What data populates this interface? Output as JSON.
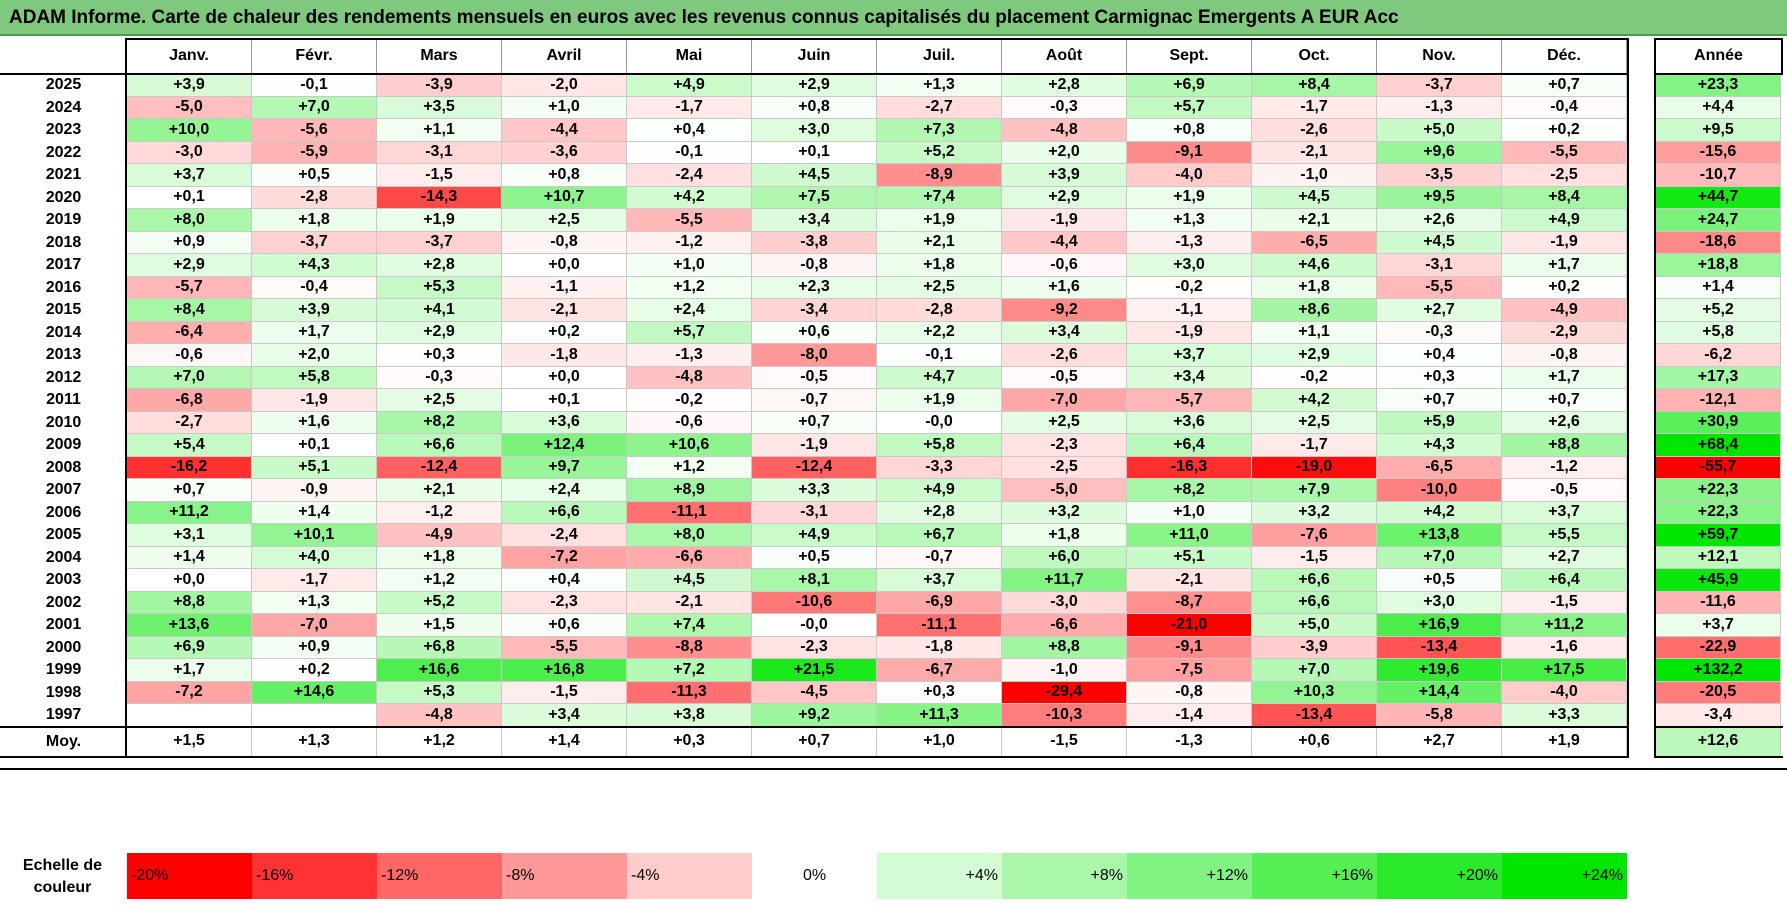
{
  "title": "ADAM Informe. Carte de chaleur des rendements mensuels en euros avec les revenus connus capitalisés du placement Carmignac Emergents A EUR Acc",
  "chart_data": {
    "type": "heatmap",
    "title": "ADAM Informe. Carte de chaleur des rendements mensuels en euros avec les revenus connus capitalisés du placement Carmignac Emergents A EUR Acc",
    "columns": [
      "Janv.",
      "Févr.",
      "Mars",
      "Avril",
      "Mai",
      "Juin",
      "Juil.",
      "Août",
      "Sept.",
      "Oct.",
      "Nov.",
      "Déc."
    ],
    "year_column": "Année",
    "rows": [
      {
        "year": "2025",
        "values": [
          "+3,9",
          "-0,1",
          "-3,9",
          "-2,0",
          "+4,9",
          "+2,9",
          "+1,3",
          "+2,8",
          "+6,9",
          "+8,4",
          "-3,7",
          "+0,7"
        ],
        "annual": "+23,3"
      },
      {
        "year": "2024",
        "values": [
          "-5,0",
          "+7,0",
          "+3,5",
          "+1,0",
          "-1,7",
          "+0,8",
          "-2,7",
          "-0,3",
          "+5,7",
          "-1,7",
          "-1,3",
          "-0,4"
        ],
        "annual": "+4,4"
      },
      {
        "year": "2023",
        "values": [
          "+10,0",
          "-5,6",
          "+1,1",
          "-4,4",
          "+0,4",
          "+3,0",
          "+7,3",
          "-4,8",
          "+0,8",
          "-2,6",
          "+5,0",
          "+0,2"
        ],
        "annual": "+9,5"
      },
      {
        "year": "2022",
        "values": [
          "-3,0",
          "-5,9",
          "-3,1",
          "-3,6",
          "-0,1",
          "+0,1",
          "+5,2",
          "+2,0",
          "-9,1",
          "-2,1",
          "+9,6",
          "-5,5"
        ],
        "annual": "-15,6"
      },
      {
        "year": "2021",
        "values": [
          "+3,7",
          "+0,5",
          "-1,5",
          "+0,8",
          "-2,4",
          "+4,5",
          "-8,9",
          "+3,9",
          "-4,0",
          "-1,0",
          "-3,5",
          "-2,5"
        ],
        "annual": "-10,7"
      },
      {
        "year": "2020",
        "values": [
          "+0,1",
          "-2,8",
          "-14,3",
          "+10,7",
          "+4,2",
          "+7,5",
          "+7,4",
          "+2,9",
          "+1,9",
          "+4,5",
          "+9,5",
          "+8,4"
        ],
        "annual": "+44,7"
      },
      {
        "year": "2019",
        "values": [
          "+8,0",
          "+1,8",
          "+1,9",
          "+2,5",
          "-5,5",
          "+3,4",
          "+1,9",
          "-1,9",
          "+1,3",
          "+2,1",
          "+2,6",
          "+4,9"
        ],
        "annual": "+24,7"
      },
      {
        "year": "2018",
        "values": [
          "+0,9",
          "-3,7",
          "-3,7",
          "-0,8",
          "-1,2",
          "-3,8",
          "+2,1",
          "-4,4",
          "-1,3",
          "-6,5",
          "+4,5",
          "-1,9"
        ],
        "annual": "-18,6"
      },
      {
        "year": "2017",
        "values": [
          "+2,9",
          "+4,3",
          "+2,8",
          "+0,0",
          "+1,0",
          "-0,8",
          "+1,8",
          "-0,6",
          "+3,0",
          "+4,6",
          "-3,1",
          "+1,7"
        ],
        "annual": "+18,8"
      },
      {
        "year": "2016",
        "values": [
          "-5,7",
          "-0,4",
          "+5,3",
          "-1,1",
          "+1,2",
          "+2,3",
          "+2,5",
          "+1,6",
          "-0,2",
          "+1,8",
          "-5,5",
          "+0,2"
        ],
        "annual": "+1,4"
      },
      {
        "year": "2015",
        "values": [
          "+8,4",
          "+3,9",
          "+4,1",
          "-2,1",
          "+2,4",
          "-3,4",
          "-2,8",
          "-9,2",
          "-1,1",
          "+8,6",
          "+2,7",
          "-4,9"
        ],
        "annual": "+5,2"
      },
      {
        "year": "2014",
        "values": [
          "-6,4",
          "+1,7",
          "+2,9",
          "+0,2",
          "+5,7",
          "+0,6",
          "+2,2",
          "+3,4",
          "-1,9",
          "+1,1",
          "-0,3",
          "-2,9"
        ],
        "annual": "+5,8"
      },
      {
        "year": "2013",
        "values": [
          "-0,6",
          "+2,0",
          "+0,3",
          "-1,8",
          "-1,3",
          "-8,0",
          "-0,1",
          "-2,6",
          "+3,7",
          "+2,9",
          "+0,4",
          "-0,8"
        ],
        "annual": "-6,2"
      },
      {
        "year": "2012",
        "values": [
          "+7,0",
          "+5,8",
          "-0,3",
          "+0,0",
          "-4,8",
          "-0,5",
          "+4,7",
          "-0,5",
          "+3,4",
          "-0,2",
          "+0,3",
          "+1,7"
        ],
        "annual": "+17,3"
      },
      {
        "year": "2011",
        "values": [
          "-6,8",
          "-1,9",
          "+2,5",
          "+0,1",
          "-0,2",
          "-0,7",
          "+1,9",
          "-7,0",
          "-5,7",
          "+4,2",
          "+0,7",
          "+0,7"
        ],
        "annual": "-12,1"
      },
      {
        "year": "2010",
        "values": [
          "-2,7",
          "+1,6",
          "+8,2",
          "+3,6",
          "-0,6",
          "+0,7",
          "-0,0",
          "+2,5",
          "+3,6",
          "+2,5",
          "+5,9",
          "+2,6"
        ],
        "annual": "+30,9"
      },
      {
        "year": "2009",
        "values": [
          "+5,4",
          "+0,1",
          "+6,6",
          "+12,4",
          "+10,6",
          "-1,9",
          "+5,8",
          "-2,3",
          "+6,4",
          "-1,7",
          "+4,3",
          "+8,8"
        ],
        "annual": "+68,4"
      },
      {
        "year": "2008",
        "values": [
          "-16,2",
          "+5,1",
          "-12,4",
          "+9,7",
          "+1,2",
          "-12,4",
          "-3,3",
          "-2,5",
          "-16,3",
          "-19,0",
          "-6,5",
          "-1,2"
        ],
        "annual": "-55,7"
      },
      {
        "year": "2007",
        "values": [
          "+0,7",
          "-0,9",
          "+2,1",
          "+2,4",
          "+8,9",
          "+3,3",
          "+4,9",
          "-5,0",
          "+8,2",
          "+7,9",
          "-10,0",
          "-0,5"
        ],
        "annual": "+22,3"
      },
      {
        "year": "2006",
        "values": [
          "+11,2",
          "+1,4",
          "-1,2",
          "+6,6",
          "-11,1",
          "-3,1",
          "+2,8",
          "+3,2",
          "+1,0",
          "+3,2",
          "+4,2",
          "+3,7"
        ],
        "annual": "+22,3"
      },
      {
        "year": "2005",
        "values": [
          "+3,1",
          "+10,1",
          "-4,9",
          "-2,4",
          "+8,0",
          "+4,9",
          "+6,7",
          "+1,8",
          "+11,0",
          "-7,6",
          "+13,8",
          "+5,5"
        ],
        "annual": "+59,7"
      },
      {
        "year": "2004",
        "values": [
          "+1,4",
          "+4,0",
          "+1,8",
          "-7,2",
          "-6,6",
          "+0,5",
          "-0,7",
          "+6,0",
          "+5,1",
          "-1,5",
          "+7,0",
          "+2,7"
        ],
        "annual": "+12,1"
      },
      {
        "year": "2003",
        "values": [
          "+0,0",
          "-1,7",
          "+1,2",
          "+0,4",
          "+4,5",
          "+8,1",
          "+3,7",
          "+11,7",
          "-2,1",
          "+6,6",
          "+0,5",
          "+6,4"
        ],
        "annual": "+45,9"
      },
      {
        "year": "2002",
        "values": [
          "+8,8",
          "+1,3",
          "+5,2",
          "-2,3",
          "-2,1",
          "-10,6",
          "-6,9",
          "-3,0",
          "-8,7",
          "+6,6",
          "+3,0",
          "-1,5"
        ],
        "annual": "-11,6"
      },
      {
        "year": "2001",
        "values": [
          "+13,6",
          "-7,0",
          "+1,5",
          "+0,6",
          "+7,4",
          "-0,0",
          "-11,1",
          "-6,6",
          "-21,0",
          "+5,0",
          "+16,9",
          "+11,2"
        ],
        "annual": "+3,7"
      },
      {
        "year": "2000",
        "values": [
          "+6,9",
          "+0,9",
          "+6,8",
          "-5,5",
          "-8,8",
          "-2,3",
          "-1,8",
          "+8,8",
          "-9,1",
          "-3,9",
          "-13,4",
          "-1,6"
        ],
        "annual": "-22,9"
      },
      {
        "year": "1999",
        "values": [
          "+1,7",
          "+0,2",
          "+16,6",
          "+16,8",
          "+7,2",
          "+21,5",
          "-6,7",
          "-1,0",
          "-7,5",
          "+7,0",
          "+19,6",
          "+17,5"
        ],
        "annual": "+132,2"
      },
      {
        "year": "1998",
        "values": [
          "-7,2",
          "+14,6",
          "+5,3",
          "-1,5",
          "-11,3",
          "-4,5",
          "+0,3",
          "-29,4",
          "-0,8",
          "+10,3",
          "+14,4",
          "-4,0"
        ],
        "annual": "-20,5"
      },
      {
        "year": "1997",
        "values": [
          "",
          "",
          "-4,8",
          "+3,4",
          "+3,8",
          "+9,2",
          "+11,3",
          "-10,3",
          "-1,4",
          "-13,4",
          "-5,8",
          "+3,3"
        ],
        "annual": "-3,4"
      }
    ],
    "average": {
      "label": "Moy.",
      "values": [
        "+1,5",
        "+1,3",
        "+1,2",
        "+1,4",
        "+0,3",
        "+0,7",
        "+1,0",
        "-1,5",
        "-1,3",
        "+0,6",
        "+2,7",
        "+1,9"
      ],
      "annual": "+12,6"
    },
    "scale": {
      "label_line1": "Echelle de",
      "label_line2": "couleur",
      "steps": [
        "-20%",
        "-16%",
        "-12%",
        "-8%",
        "-4%",
        "0%",
        "+4%",
        "+8%",
        "+12%",
        "+16%",
        "+20%",
        "+24%"
      ]
    },
    "colors": {
      "negative": "#ff0000",
      "positive": "#00e600",
      "neutral": "#ffffff",
      "title_bg": "#7fc97f"
    }
  }
}
